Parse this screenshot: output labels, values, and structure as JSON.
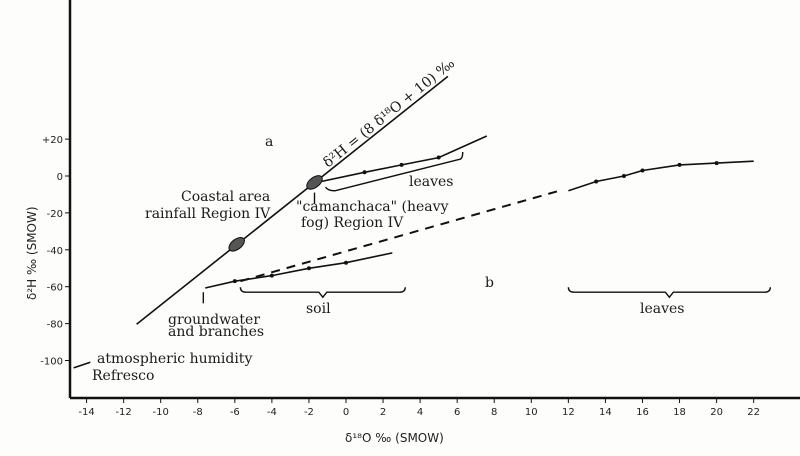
{
  "chart_data": {
    "type": "line",
    "xlabel": "δ¹⁸O ‰ (SMOW)",
    "ylabel": "δ²H ‰ (SMOW)",
    "xlim": [
      -15,
      24
    ],
    "ylim": [
      -115,
      60
    ],
    "xticks": [
      "-14",
      "-12",
      "-10",
      "-8",
      "-6",
      "-4",
      "-2",
      "0",
      "2",
      "4",
      "6",
      "8",
      "10",
      "12",
      "14",
      "16",
      "18",
      "20",
      "22"
    ],
    "yticks": [
      {
        "v": 20,
        "label": "+20"
      },
      {
        "v": 0,
        "label": "0"
      },
      {
        "v": -20,
        "label": "-20"
      },
      {
        "v": -40,
        "label": "-40"
      },
      {
        "v": -60,
        "label": "-60"
      },
      {
        "v": -80,
        "label": "-80"
      },
      {
        "v": -100,
        "label": "-100"
      }
    ],
    "grid": false,
    "series": [
      {
        "name": "δ²H = (8 δ¹⁸O + 10) ‰",
        "style": "solid",
        "points": [
          [
            -11.3,
            -80.4
          ],
          [
            5.5,
            54
          ]
        ]
      },
      {
        "name": "leaves (a)",
        "style": "solid",
        "points": [
          [
            -1.5,
            -3.3
          ],
          [
            1,
            2
          ],
          [
            3,
            6
          ],
          [
            5,
            10
          ],
          [
            7.6,
            21.7
          ]
        ]
      },
      {
        "name": "soil",
        "style": "solid",
        "points": [
          [
            -7.6,
            -60.7
          ],
          [
            -6,
            -57
          ],
          [
            -4,
            -54
          ],
          [
            -2,
            -50
          ],
          [
            0,
            -47
          ],
          [
            2.5,
            -41.7
          ]
        ]
      },
      {
        "name": "",
        "style": "dashed",
        "points": [
          [
            -5.7,
            -57
          ],
          [
            11.5,
            -8
          ]
        ]
      },
      {
        "name": "leaves (b)",
        "style": "solid",
        "points": [
          [
            12,
            -8
          ],
          [
            13.5,
            -3
          ],
          [
            15,
            0
          ],
          [
            16,
            3
          ],
          [
            18,
            6
          ],
          [
            20,
            7
          ],
          [
            22,
            8
          ]
        ]
      },
      {
        "name": "atmospheric humidity Refresco",
        "style": "solid",
        "points": [
          [
            -14.7,
            -104
          ],
          [
            -13.8,
            -101
          ]
        ]
      }
    ],
    "clusters": [
      {
        "label": "Coastal area rainfall Region IV",
        "x": -5.9,
        "y": -37
      },
      {
        "label": "\"camanchaca\" (heavy fog) Region IV",
        "x": -1.7,
        "y": -3.5
      }
    ],
    "annotations": {
      "panel_a": "a",
      "panel_b": "b",
      "equation": "δ²H = (8 δ¹⁸O + 10) ‰",
      "coastal_1": "Coastal area",
      "coastal_2": "rainfall Region IV",
      "fog_1": "\"camanchaca\" (heavy",
      "fog_2": "fog) Region IV",
      "leaves_a": "leaves",
      "leaves_b": "leaves",
      "soil": "soil",
      "gw_1": "groundwater",
      "gw_2": "and branches",
      "atm_1": "atmospheric humidity",
      "atm_2": "Refresco"
    }
  }
}
